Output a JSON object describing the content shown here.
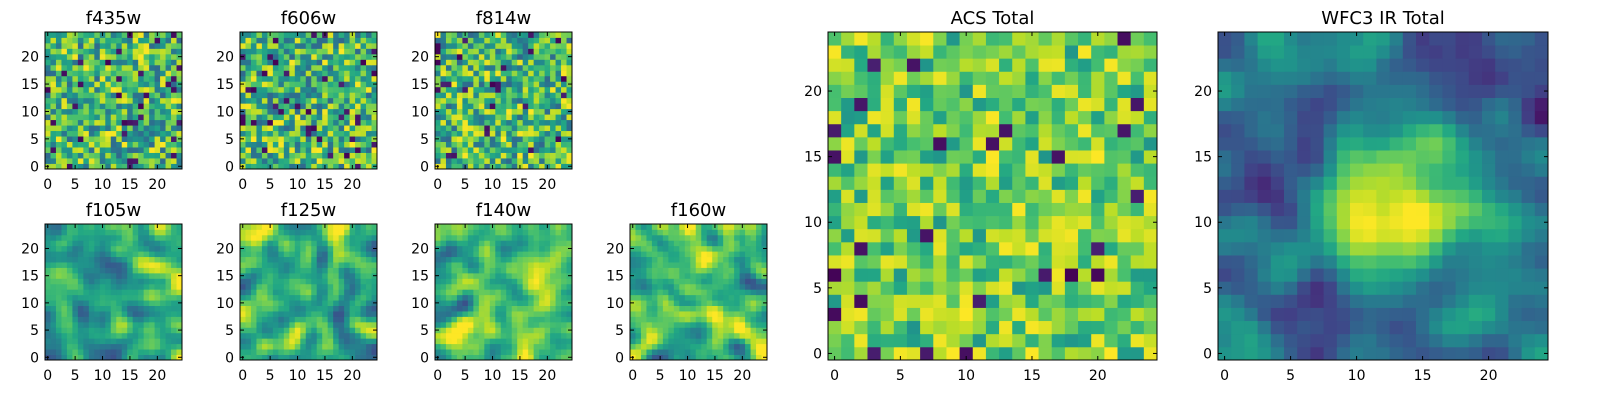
{
  "chart_data": [
    {
      "type": "heatmap",
      "title": "f435w",
      "xlim": [
        -0.5,
        24.5
      ],
      "ylim": [
        -0.5,
        24.5
      ],
      "xticks": [
        0,
        5,
        10,
        15,
        20
      ],
      "yticks": [
        0,
        5,
        10,
        15,
        20
      ],
      "colormap": "viridis",
      "grid": false,
      "texture": "fine-noise"
    },
    {
      "type": "heatmap",
      "title": "f606w",
      "xlim": [
        -0.5,
        24.5
      ],
      "ylim": [
        -0.5,
        24.5
      ],
      "xticks": [
        0,
        5,
        10,
        15,
        20
      ],
      "yticks": [
        0,
        5,
        10,
        15,
        20
      ],
      "colormap": "viridis",
      "grid": false,
      "texture": "fine-noise"
    },
    {
      "type": "heatmap",
      "title": "f814w",
      "xlim": [
        -0.5,
        24.5
      ],
      "ylim": [
        -0.5,
        24.5
      ],
      "xticks": [
        0,
        5,
        10,
        15,
        20
      ],
      "yticks": [
        0,
        5,
        10,
        15,
        20
      ],
      "colormap": "viridis",
      "grid": false,
      "texture": "fine-noise"
    },
    {
      "type": "heatmap",
      "title": "f105w",
      "xlim": [
        -0.5,
        24.5
      ],
      "ylim": [
        -0.5,
        24.5
      ],
      "xticks": [
        0,
        5,
        10,
        15,
        20
      ],
      "yticks": [
        0,
        5,
        10,
        15,
        20
      ],
      "colormap": "viridis",
      "grid": false,
      "texture": "smooth-noise"
    },
    {
      "type": "heatmap",
      "title": "f125w",
      "xlim": [
        -0.5,
        24.5
      ],
      "ylim": [
        -0.5,
        24.5
      ],
      "xticks": [
        0,
        5,
        10,
        15,
        20
      ],
      "yticks": [
        0,
        5,
        10,
        15,
        20
      ],
      "colormap": "viridis",
      "grid": false,
      "texture": "smooth-noise"
    },
    {
      "type": "heatmap",
      "title": "f140w",
      "xlim": [
        -0.5,
        24.5
      ],
      "ylim": [
        -0.5,
        24.5
      ],
      "xticks": [
        0,
        5,
        10,
        15,
        20
      ],
      "yticks": [
        0,
        5,
        10,
        15,
        20
      ],
      "colormap": "viridis",
      "grid": false,
      "texture": "smooth-noise"
    },
    {
      "type": "heatmap",
      "title": "f160w",
      "xlim": [
        -0.5,
        24.5
      ],
      "ylim": [
        -0.5,
        24.5
      ],
      "xticks": [
        0,
        5,
        10,
        15,
        20
      ],
      "yticks": [
        0,
        5,
        10,
        15,
        20
      ],
      "colormap": "viridis",
      "grid": false,
      "texture": "smooth-noise"
    },
    {
      "type": "heatmap",
      "title": "ACS Total",
      "xlim": [
        -0.5,
        24.5
      ],
      "ylim": [
        -0.5,
        24.5
      ],
      "xticks": [
        0,
        5,
        10,
        15,
        20
      ],
      "yticks": [
        0,
        5,
        10,
        15,
        20
      ],
      "colormap": "viridis",
      "grid": false,
      "texture": "fine-noise-bright"
    },
    {
      "type": "heatmap",
      "title": "WFC3 IR Total",
      "xlim": [
        -0.5,
        24.5
      ],
      "ylim": [
        -0.5,
        24.5
      ],
      "xticks": [
        0,
        5,
        10,
        15,
        20
      ],
      "yticks": [
        0,
        5,
        10,
        15,
        20
      ],
      "colormap": "viridis",
      "grid": false,
      "texture": "smooth-central-peak"
    }
  ]
}
